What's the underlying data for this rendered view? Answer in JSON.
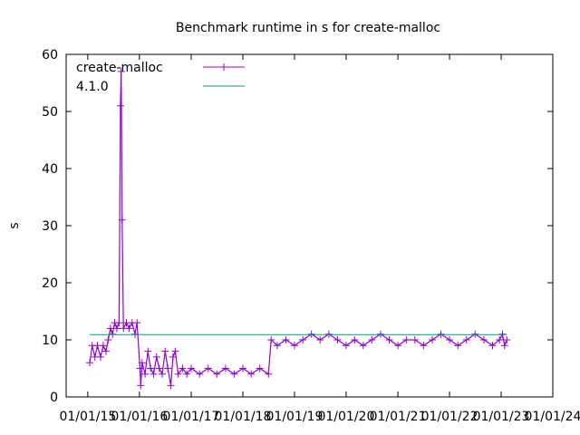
{
  "chart_data": {
    "type": "line",
    "title": "Benchmark runtime in s for create-malloc",
    "xlabel": "",
    "ylabel": "s",
    "ylim": [
      0,
      60
    ],
    "yticks": [
      0,
      10,
      20,
      30,
      40,
      50,
      60
    ],
    "xticks": [
      "01/01/15",
      "01/01/16",
      "01/01/17",
      "01/01/18",
      "01/01/19",
      "01/01/20",
      "01/01/21",
      "01/01/22",
      "01/01/23",
      "01/01/24"
    ],
    "xlim": [
      "2014-08-01",
      "2024-01-01"
    ],
    "grid": false,
    "legend_position": "top-left",
    "series": [
      {
        "name": "create-malloc",
        "color": "#9400d3",
        "marker": "plus",
        "points": [
          [
            "2015-01-15",
            6
          ],
          [
            "2015-02-01",
            9
          ],
          [
            "2015-02-20",
            7
          ],
          [
            "2015-03-10",
            9
          ],
          [
            "2015-04-01",
            7
          ],
          [
            "2015-04-20",
            9
          ],
          [
            "2015-05-10",
            8
          ],
          [
            "2015-05-25",
            10
          ],
          [
            "2015-06-10",
            12
          ],
          [
            "2015-06-25",
            11
          ],
          [
            "2015-07-10",
            13
          ],
          [
            "2015-07-25",
            12
          ],
          [
            "2015-08-10",
            13
          ],
          [
            "2015-08-20",
            51
          ],
          [
            "2015-08-25",
            57
          ],
          [
            "2015-09-01",
            31
          ],
          [
            "2015-09-10",
            12
          ],
          [
            "2015-10-01",
            13
          ],
          [
            "2015-10-20",
            12
          ],
          [
            "2015-11-10",
            13
          ],
          [
            "2015-12-01",
            11
          ],
          [
            "2015-12-15",
            13
          ],
          [
            "2016-01-05",
            5
          ],
          [
            "2016-01-10",
            2
          ],
          [
            "2016-01-20",
            6
          ],
          [
            "2016-02-10",
            4
          ],
          [
            "2016-03-01",
            8
          ],
          [
            "2016-03-20",
            5
          ],
          [
            "2016-04-10",
            4
          ],
          [
            "2016-05-01",
            7
          ],
          [
            "2016-05-20",
            5
          ],
          [
            "2016-06-10",
            4
          ],
          [
            "2016-07-01",
            8
          ],
          [
            "2016-07-20",
            5
          ],
          [
            "2016-08-10",
            2
          ],
          [
            "2016-08-25",
            7
          ],
          [
            "2016-09-10",
            8
          ],
          [
            "2016-10-01",
            4
          ],
          [
            "2016-11-01",
            5
          ],
          [
            "2016-12-01",
            4
          ],
          [
            "2017-01-01",
            5
          ],
          [
            "2017-03-01",
            4
          ],
          [
            "2017-05-01",
            5
          ],
          [
            "2017-07-01",
            4
          ],
          [
            "2017-09-01",
            5
          ],
          [
            "2017-11-01",
            4
          ],
          [
            "2018-01-01",
            5
          ],
          [
            "2018-03-01",
            4
          ],
          [
            "2018-05-01",
            5
          ],
          [
            "2018-07-01",
            4
          ],
          [
            "2018-07-20",
            10
          ],
          [
            "2018-09-01",
            9
          ],
          [
            "2018-11-01",
            10
          ],
          [
            "2019-01-01",
            9
          ],
          [
            "2019-03-01",
            10
          ],
          [
            "2019-05-01",
            11
          ],
          [
            "2019-07-01",
            10
          ],
          [
            "2019-09-01",
            11
          ],
          [
            "2019-11-01",
            10
          ],
          [
            "2020-01-01",
            9
          ],
          [
            "2020-03-01",
            10
          ],
          [
            "2020-05-01",
            9
          ],
          [
            "2020-07-01",
            10
          ],
          [
            "2020-09-01",
            11
          ],
          [
            "2020-11-01",
            10
          ],
          [
            "2021-01-01",
            9
          ],
          [
            "2021-03-01",
            10
          ],
          [
            "2021-05-01",
            10
          ],
          [
            "2021-07-01",
            9
          ],
          [
            "2021-09-01",
            10
          ],
          [
            "2021-11-01",
            11
          ],
          [
            "2022-01-01",
            10
          ],
          [
            "2022-03-01",
            9
          ],
          [
            "2022-05-01",
            10
          ],
          [
            "2022-07-01",
            11
          ],
          [
            "2022-09-01",
            10
          ],
          [
            "2022-11-01",
            9
          ],
          [
            "2022-12-20",
            10
          ],
          [
            "2023-01-10",
            11
          ],
          [
            "2023-01-25",
            9
          ],
          [
            "2023-02-10",
            10
          ]
        ]
      },
      {
        "name": "4.1.0",
        "color": "#009e73",
        "marker": "none",
        "points": [
          [
            "2015-01-15",
            10.9
          ],
          [
            "2023-02-10",
            10.9
          ]
        ]
      }
    ]
  }
}
